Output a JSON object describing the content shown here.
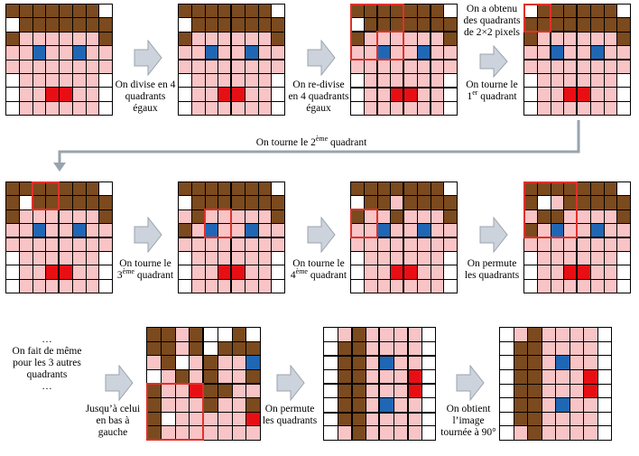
{
  "colors": {
    "B": "#7b4a1e",
    "P": "#f8c4c6",
    "U": "#1f67b5",
    "R": "#e80f14",
    "W": "#ffffff",
    "highlight": "#e0302a",
    "arrow": "#cdd3dc"
  },
  "grids": {
    "original": [
      "BBBBBBBW",
      "WBBBBBBB",
      "BPPPPPPB",
      "PPUPPUPP",
      "PPPPPPPP",
      "WPPPPPPW",
      "WPPRRPPW",
      "WPPPPPPW"
    ],
    "step3": [
      "WBBBBBBW",
      "BBBBBBBB",
      "BPPPPPPB",
      "PPUPPUPP",
      "PPPPPPPP",
      "WPPPPPPW",
      "WPPRRPPW",
      "WPPPPPPW"
    ],
    "step4": [
      "BBBBBBBW",
      "BWBBBBBB",
      "BPPPPPPB",
      "PPUPPUPP",
      "PPPPPPPP",
      "WPPPPPPW",
      "WPPRRPPW",
      "WPPPPPPW"
    ],
    "step5": [
      "BBBBBBBW",
      "WBBBBBBB",
      "PBPPPPPB",
      "BPUPPUPP",
      "PPPPPPPP",
      "WPPPPPPW",
      "WPPRRPPW",
      "WPPPPPPW"
    ],
    "step6": [
      "BBBBBBBW",
      "WBBPBBBB",
      "BPPBPPPB",
      "PPUPPUPP",
      "PPPPPPPP",
      "WPPPPPPW",
      "WPPRRPPW",
      "WPPPPPPW"
    ],
    "step7": [
      "BBBBBBBW",
      "BWPBBBBB",
      "PBBPPPPB",
      "BPUPPUPP",
      "PPPPPPPP",
      "WPPPPPPW",
      "WPPRRPPW",
      "WPPPPPPW"
    ],
    "step8": [
      "BBPBWWBW",
      "BBPBWBBB",
      "PBWPBPPU",
      "WPBPBPPB",
      "BPPRBBPP",
      "BPPPBPPB",
      "BWPPPPPR",
      "BPPPPPPP"
    ],
    "permuted": [
      "WPBPPPPW",
      "WBBPPPPW",
      "WBBPUPPW",
      "WBBPPPRW",
      "WBBPPPRW",
      "WBBPUPPW",
      "WBBPPPPW",
      "WPBPPPPW"
    ],
    "final": [
      "WPBPPPPW",
      "WBBPPPPW",
      "WBBPUPPW",
      "WBBPPPRW",
      "WBBPPPRW",
      "WBBPUPPW",
      "WBBPPPPW",
      "WPBPPPPW"
    ]
  },
  "captions": {
    "c1": [
      "On divise en 4",
      "quadrants",
      "égaux"
    ],
    "c2": [
      "On re-divise",
      "en 4 quadrants",
      "égaux"
    ],
    "c3": [
      "On a obtenu",
      "des quadrants",
      "de 2×2 pixels"
    ],
    "c4a": "On tourne le",
    "c4b": "1",
    "c4sup": "er",
    "c4c": " quadrant",
    "c5a": "On tourne le 2",
    "c5sup": "ème",
    "c5b": " quadrant",
    "c6a": "On tourne le",
    "c6b": "3",
    "c6sup": "ème",
    "c6c": " quadrant",
    "c7a": "On tourne le",
    "c7b": "4",
    "c7sup": "ème",
    "c7c": " quadrant",
    "c8": [
      "On permute",
      "les quadrants"
    ],
    "c9": [
      "…",
      "On fait de même",
      "pour les 3 autres",
      "quadrants",
      "…"
    ],
    "c10": [
      "Jusqu’à celui",
      "en bas à",
      "gauche"
    ],
    "c11": [
      "On permute",
      "les quadrants"
    ],
    "c12": [
      "On obtient",
      "l’image",
      "tournée à 90°"
    ]
  }
}
